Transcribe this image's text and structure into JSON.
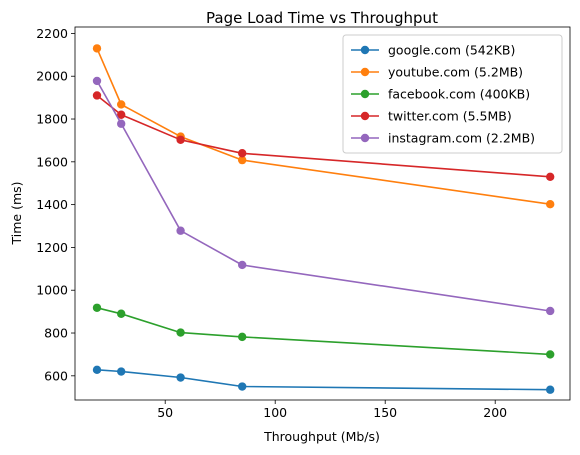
{
  "chart_data": {
    "type": "line",
    "title": "Page Load Time vs Throughput",
    "xlabel": "Throughput (Mb/s)",
    "ylabel": "Time (ms)",
    "xlim": [
      9,
      234
    ],
    "ylim": [
      487,
      2230
    ],
    "xticks": [
      50,
      100,
      150,
      200
    ],
    "yticks": [
      600,
      800,
      1000,
      1200,
      1400,
      1600,
      1800,
      2000,
      2200
    ],
    "grid": false,
    "legend_position": "top-right",
    "x": [
      19,
      30,
      57,
      85,
      225
    ],
    "series": [
      {
        "name": "google.com (542KB)",
        "color": "#1f77b4",
        "values": [
          628,
          620,
          592,
          550,
          535
        ]
      },
      {
        "name": "youtube.com (5.2MB)",
        "color": "#ff7f0e",
        "values": [
          2130,
          1868,
          1718,
          1608,
          1402
        ]
      },
      {
        "name": "facebook.com (400KB)",
        "color": "#2ca02c",
        "values": [
          918,
          890,
          802,
          782,
          700
        ]
      },
      {
        "name": "twitter.com (5.5MB)",
        "color": "#d62728",
        "values": [
          1910,
          1820,
          1703,
          1640,
          1530
        ]
      },
      {
        "name": "instagram.com (2.2MB)",
        "color": "#9467bd",
        "values": [
          1978,
          1778,
          1278,
          1118,
          903
        ]
      }
    ]
  }
}
